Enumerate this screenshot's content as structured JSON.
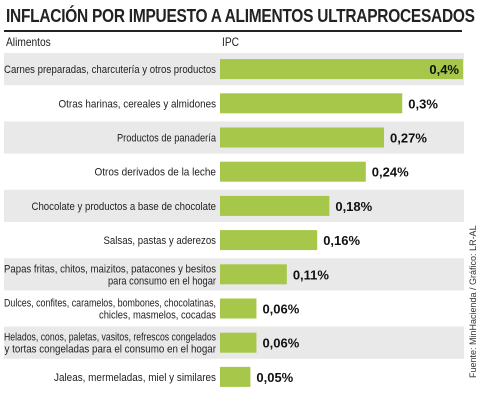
{
  "chart_data": {
    "type": "bar",
    "orientation": "horizontal",
    "title": "INFLACIÓN POR IMPUESTO A ALIMENTOS ULTRAPROCESADOS",
    "category_header": "Alimentos",
    "value_header": "IPC",
    "categories": [
      "Carnes preparadas, charcutería y otros productos",
      "Otras harinas, cereales y almidones",
      "Productos de panadería",
      "Otros derivados de la leche",
      "Chocolate y productos a base de chocolate",
      "Salsas, pastas y aderezos",
      "Papas fritas, chitos, maizitos, patacones y besitos para consumo en el hogar",
      "Dulces, confites, caramelos, bombones, chocolatinas, chicles, masmelos, cocadas",
      "Helados, conos, paletas, vasitos, refrescos congelados y tortas congeladas para el consumo en el hogar",
      "Jaleas, mermeladas, miel y similares"
    ],
    "category_lines": [
      [
        "Carnes preparadas, charcutería y otros productos"
      ],
      [
        "Otras harinas, cereales y almidones"
      ],
      [
        "Productos de panadería"
      ],
      [
        "Otros derivados de la leche"
      ],
      [
        "Chocolate y productos a base de chocolate"
      ],
      [
        "Salsas, pastas y aderezos"
      ],
      [
        "Papas fritas, chitos, maizitos, patacones y besitos",
        "para consumo en el hogar"
      ],
      [
        "Dulces, confites, caramelos, bombones, chocolatinas,",
        "chicles, masmelos, cocadas"
      ],
      [
        "Helados, conos, paletas, vasitos, refrescos congelados",
        "y tortas congeladas para el consumo en el hogar"
      ],
      [
        "Jaleas, mermeladas, miel y similares"
      ]
    ],
    "values": [
      0.4,
      0.3,
      0.27,
      0.24,
      0.18,
      0.16,
      0.11,
      0.06,
      0.06,
      0.05
    ],
    "value_labels": [
      "0,4%",
      "0,3%",
      "0,27%",
      "0,24%",
      "0,18%",
      "0,16%",
      "0,11%",
      "0,06%",
      "0,06%",
      "0,05%"
    ],
    "xlim": [
      0,
      0.4
    ],
    "bar_color": "#a6c74a",
    "stripe_color": "#e9e9e9"
  },
  "source": "Fuente: MinHacienda / Gráfico: LR-AL"
}
